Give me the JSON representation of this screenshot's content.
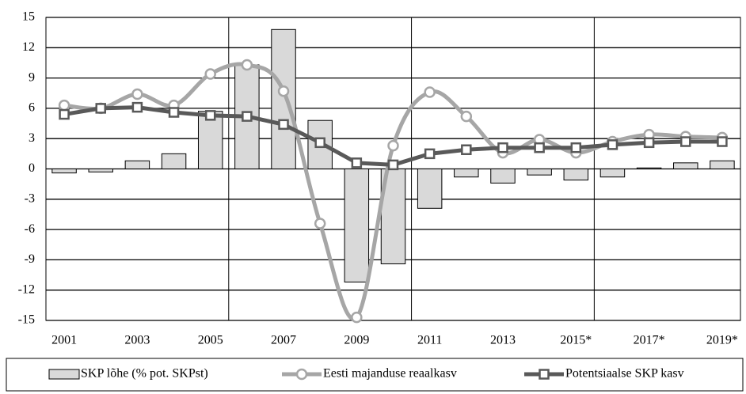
{
  "chart_data": {
    "type": "bar-line",
    "categories": [
      "2001",
      null,
      "2003",
      null,
      "2005",
      null,
      "2007",
      null,
      "2009",
      null,
      "2011",
      null,
      "2013",
      null,
      "2015*",
      null,
      "2017*",
      null,
      "2019*"
    ],
    "series": [
      {
        "name": "SKP lõhe (% pot. SKPst)",
        "type": "bar",
        "color": "#d9d9d9",
        "values": [
          -0.4,
          -0.3,
          0.8,
          1.5,
          5.7,
          10.3,
          13.8,
          4.8,
          -11.2,
          -9.4,
          -3.9,
          -0.8,
          -1.4,
          -0.6,
          -1.1,
          -0.8,
          0.1,
          0.6,
          0.8
        ]
      },
      {
        "name": "Eesti majanduse reaalkasv",
        "type": "line",
        "marker": "circle",
        "smooth": true,
        "color": "#a6a6a6",
        "values": [
          6.3,
          6.0,
          7.4,
          6.3,
          9.4,
          10.3,
          7.7,
          -5.4,
          -14.7,
          2.3,
          7.6,
          5.2,
          1.6,
          2.9,
          1.6,
          2.7,
          3.4,
          3.2,
          3.1
        ]
      },
      {
        "name": "Potentsiaalse SKP kasv",
        "type": "line",
        "marker": "square",
        "smooth": false,
        "color": "#595959",
        "values": [
          5.4,
          6.0,
          6.1,
          5.6,
          5.3,
          5.2,
          4.4,
          2.6,
          0.6,
          0.4,
          1.5,
          1.9,
          2.1,
          2.1,
          2.1,
          2.4,
          2.6,
          2.7,
          2.7
        ]
      }
    ],
    "ylim": [
      -15,
      15
    ],
    "yticks": [
      -15,
      -12,
      -9,
      -6,
      -3,
      0,
      3,
      6,
      9,
      12,
      15
    ],
    "grid": true,
    "legend": "bottom"
  }
}
